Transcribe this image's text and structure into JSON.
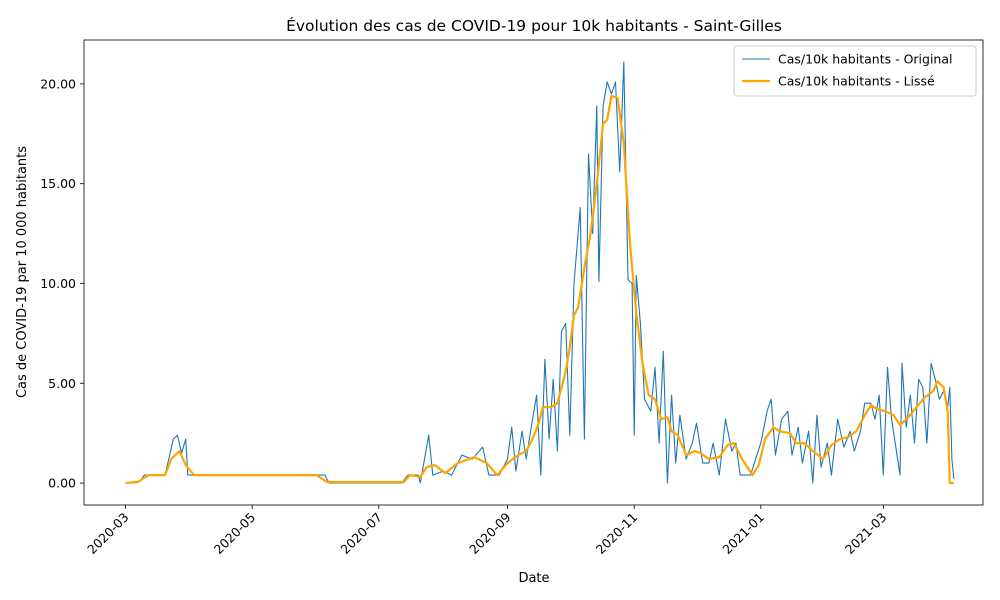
{
  "chart_data": {
    "type": "line",
    "title": "Évolution des cas de COVID-19 pour 10k habitants - Saint-Gilles",
    "xlabel": "Date",
    "ylabel": "Cas de COVID-19 par 10 000 habitants",
    "xlim": [
      "2020-02-10",
      "2021-04-18"
    ],
    "ylim": [
      -1.1,
      22.2
    ],
    "yticks": [
      0,
      5,
      10,
      15,
      20
    ],
    "ytick_labels": [
      "0.00",
      "5.00",
      "10.00",
      "15.00",
      "20.00"
    ],
    "xticks": [
      "2020-03-01",
      "2020-05-01",
      "2020-07-01",
      "2020-09-01",
      "2020-11-01",
      "2021-01-01",
      "2021-03-01"
    ],
    "xtick_labels": [
      "2020-03",
      "2020-05",
      "2020-07",
      "2020-09",
      "2020-11",
      "2021-01",
      "2021-03"
    ],
    "legend_position": "top-right",
    "grid": false,
    "series": [
      {
        "name": "Cas/10k habitants - Original",
        "color": "#1f77b4",
        "points": [
          [
            "2020-03-01",
            0
          ],
          [
            "2020-03-08",
            0.1
          ],
          [
            "2020-03-10",
            0.4
          ],
          [
            "2020-03-20",
            0.4
          ],
          [
            "2020-03-24",
            2.2
          ],
          [
            "2020-03-26",
            2.4
          ],
          [
            "2020-03-28",
            1.5
          ],
          [
            "2020-03-30",
            2.2
          ],
          [
            "2020-03-31",
            0.4
          ],
          [
            "2020-04-05",
            0.4
          ],
          [
            "2020-05-31",
            0.4
          ],
          [
            "2020-06-05",
            0.4
          ],
          [
            "2020-06-07",
            0
          ],
          [
            "2020-07-12",
            0
          ],
          [
            "2020-07-15",
            0.4
          ],
          [
            "2020-07-20",
            0.4
          ],
          [
            "2020-07-21",
            0
          ],
          [
            "2020-07-25",
            2.4
          ],
          [
            "2020-07-27",
            0.4
          ],
          [
            "2020-08-01",
            0.6
          ],
          [
            "2020-08-05",
            0.4
          ],
          [
            "2020-08-10",
            1.4
          ],
          [
            "2020-08-15",
            1.2
          ],
          [
            "2020-08-20",
            1.8
          ],
          [
            "2020-08-23",
            0.4
          ],
          [
            "2020-08-28",
            0.4
          ],
          [
            "2020-09-01",
            1.2
          ],
          [
            "2020-09-03",
            2.8
          ],
          [
            "2020-09-05",
            0.6
          ],
          [
            "2020-09-08",
            2.6
          ],
          [
            "2020-09-10",
            1.2
          ],
          [
            "2020-09-13",
            3.2
          ],
          [
            "2020-09-15",
            4.4
          ],
          [
            "2020-09-17",
            0.4
          ],
          [
            "2020-09-19",
            6.2
          ],
          [
            "2020-09-21",
            2.2
          ],
          [
            "2020-09-23",
            5.2
          ],
          [
            "2020-09-25",
            1.6
          ],
          [
            "2020-09-27",
            7.6
          ],
          [
            "2020-09-29",
            8.0
          ],
          [
            "2020-10-01",
            2.4
          ],
          [
            "2020-10-03",
            10.0
          ],
          [
            "2020-10-06",
            13.8
          ],
          [
            "2020-10-08",
            2.2
          ],
          [
            "2020-10-10",
            16.5
          ],
          [
            "2020-10-12",
            12.5
          ],
          [
            "2020-10-14",
            18.9
          ],
          [
            "2020-10-15",
            10.1
          ],
          [
            "2020-10-17",
            18.9
          ],
          [
            "2020-10-19",
            20.1
          ],
          [
            "2020-10-21",
            19.5
          ],
          [
            "2020-10-23",
            20.1
          ],
          [
            "2020-10-25",
            15.6
          ],
          [
            "2020-10-27",
            21.1
          ],
          [
            "2020-10-29",
            10.2
          ],
          [
            "2020-10-31",
            10.0
          ],
          [
            "2020-11-01",
            2.4
          ],
          [
            "2020-11-02",
            10.4
          ],
          [
            "2020-11-04",
            8.0
          ],
          [
            "2020-11-06",
            4.2
          ],
          [
            "2020-11-09",
            3.6
          ],
          [
            "2020-11-11",
            5.8
          ],
          [
            "2020-11-13",
            2.0
          ],
          [
            "2020-11-15",
            6.6
          ],
          [
            "2020-11-17",
            0.0
          ],
          [
            "2020-11-19",
            4.4
          ],
          [
            "2020-11-21",
            1.0
          ],
          [
            "2020-11-23",
            3.4
          ],
          [
            "2020-11-26",
            1.2
          ],
          [
            "2020-11-29",
            2.0
          ],
          [
            "2020-12-01",
            3.0
          ],
          [
            "2020-12-04",
            1.0
          ],
          [
            "2020-12-07",
            1.0
          ],
          [
            "2020-12-09",
            2.0
          ],
          [
            "2020-12-12",
            0.4
          ],
          [
            "2020-12-15",
            3.2
          ],
          [
            "2020-12-18",
            1.6
          ],
          [
            "2020-12-20",
            2.0
          ],
          [
            "2020-12-22",
            0.4
          ],
          [
            "2020-12-27",
            0.4
          ],
          [
            "2021-01-01",
            2.0
          ],
          [
            "2021-01-04",
            3.6
          ],
          [
            "2021-01-06",
            4.2
          ],
          [
            "2021-01-08",
            1.4
          ],
          [
            "2021-01-11",
            3.2
          ],
          [
            "2021-01-14",
            3.6
          ],
          [
            "2021-01-16",
            1.4
          ],
          [
            "2021-01-19",
            2.8
          ],
          [
            "2021-01-21",
            1.0
          ],
          [
            "2021-01-24",
            2.6
          ],
          [
            "2021-01-26",
            0.0
          ],
          [
            "2021-01-28",
            3.4
          ],
          [
            "2021-01-30",
            0.8
          ],
          [
            "2021-02-02",
            2.0
          ],
          [
            "2021-02-04",
            0.4
          ],
          [
            "2021-02-07",
            3.2
          ],
          [
            "2021-02-10",
            1.8
          ],
          [
            "2021-02-13",
            2.6
          ],
          [
            "2021-02-15",
            1.6
          ],
          [
            "2021-02-18",
            2.6
          ],
          [
            "2021-02-20",
            4.0
          ],
          [
            "2021-02-23",
            4.0
          ],
          [
            "2021-02-25",
            3.2
          ],
          [
            "2021-02-27",
            4.4
          ],
          [
            "2021-03-01",
            0.4
          ],
          [
            "2021-03-03",
            5.8
          ],
          [
            "2021-03-05",
            3.2
          ],
          [
            "2021-03-07",
            1.8
          ],
          [
            "2021-03-09",
            0.4
          ],
          [
            "2021-03-10",
            6.0
          ],
          [
            "2021-03-12",
            2.8
          ],
          [
            "2021-03-14",
            4.4
          ],
          [
            "2021-03-16",
            2.0
          ],
          [
            "2021-03-18",
            5.2
          ],
          [
            "2021-03-20",
            4.8
          ],
          [
            "2021-03-22",
            2.0
          ],
          [
            "2021-03-24",
            6.0
          ],
          [
            "2021-03-26",
            5.2
          ],
          [
            "2021-03-28",
            4.2
          ],
          [
            "2021-03-30",
            4.6
          ],
          [
            "2021-04-01",
            3.8
          ],
          [
            "2021-04-02",
            4.8
          ],
          [
            "2021-04-03",
            1.2
          ],
          [
            "2021-04-04",
            0.2
          ]
        ]
      },
      {
        "name": "Cas/10k habitants - Lissé",
        "color": "#ffa500",
        "points": [
          [
            "2020-03-01",
            0
          ],
          [
            "2020-03-07",
            0.05
          ],
          [
            "2020-03-12",
            0.4
          ],
          [
            "2020-03-20",
            0.4
          ],
          [
            "2020-03-23",
            1.2
          ],
          [
            "2020-03-27",
            1.6
          ],
          [
            "2020-03-30",
            0.9
          ],
          [
            "2020-04-03",
            0.4
          ],
          [
            "2020-06-01",
            0.4
          ],
          [
            "2020-06-06",
            0.05
          ],
          [
            "2020-07-13",
            0.05
          ],
          [
            "2020-07-16",
            0.4
          ],
          [
            "2020-07-21",
            0.3
          ],
          [
            "2020-07-24",
            0.8
          ],
          [
            "2020-07-28",
            0.9
          ],
          [
            "2020-08-02",
            0.5
          ],
          [
            "2020-08-08",
            1.0
          ],
          [
            "2020-08-16",
            1.3
          ],
          [
            "2020-08-22",
            1.0
          ],
          [
            "2020-08-27",
            0.4
          ],
          [
            "2020-09-01",
            1.0
          ],
          [
            "2020-09-06",
            1.4
          ],
          [
            "2020-09-10",
            1.6
          ],
          [
            "2020-09-13",
            2.2
          ],
          [
            "2020-09-16",
            3.0
          ],
          [
            "2020-09-18",
            3.8
          ],
          [
            "2020-09-22",
            3.8
          ],
          [
            "2020-09-25",
            4.0
          ],
          [
            "2020-09-29",
            5.6
          ],
          [
            "2020-10-01",
            6.8
          ],
          [
            "2020-10-03",
            8.4
          ],
          [
            "2020-10-05",
            8.8
          ],
          [
            "2020-10-08",
            10.8
          ],
          [
            "2020-10-11",
            12.5
          ],
          [
            "2020-10-14",
            15.0
          ],
          [
            "2020-10-17",
            18.0
          ],
          [
            "2020-10-19",
            18.2
          ],
          [
            "2020-10-21",
            19.4
          ],
          [
            "2020-10-24",
            19.3
          ],
          [
            "2020-10-27",
            17.0
          ],
          [
            "2020-10-30",
            12.0
          ],
          [
            "2020-11-02",
            8.5
          ],
          [
            "2020-11-05",
            6.0
          ],
          [
            "2020-11-08",
            4.4
          ],
          [
            "2020-11-11",
            4.2
          ],
          [
            "2020-11-14",
            3.2
          ],
          [
            "2020-11-17",
            3.3
          ],
          [
            "2020-11-19",
            2.6
          ],
          [
            "2020-11-22",
            2.4
          ],
          [
            "2020-11-26",
            1.4
          ],
          [
            "2020-11-30",
            1.6
          ],
          [
            "2020-12-03",
            1.5
          ],
          [
            "2020-12-07",
            1.2
          ],
          [
            "2020-12-12",
            1.3
          ],
          [
            "2020-12-16",
            1.9
          ],
          [
            "2020-12-19",
            2.0
          ],
          [
            "2020-12-23",
            1.2
          ],
          [
            "2020-12-28",
            0.4
          ],
          [
            "2020-12-31",
            0.9
          ],
          [
            "2021-01-03",
            2.2
          ],
          [
            "2021-01-07",
            2.8
          ],
          [
            "2021-01-10",
            2.6
          ],
          [
            "2021-01-15",
            2.5
          ],
          [
            "2021-01-18",
            2.0
          ],
          [
            "2021-01-22",
            2.0
          ],
          [
            "2021-01-26",
            1.6
          ],
          [
            "2021-01-31",
            1.2
          ],
          [
            "2021-02-04",
            1.9
          ],
          [
            "2021-02-08",
            2.2
          ],
          [
            "2021-02-12",
            2.3
          ],
          [
            "2021-02-16",
            2.6
          ],
          [
            "2021-02-20",
            3.4
          ],
          [
            "2021-02-23",
            3.9
          ],
          [
            "2021-02-26",
            3.7
          ],
          [
            "2021-03-02",
            3.6
          ],
          [
            "2021-03-06",
            3.4
          ],
          [
            "2021-03-09",
            2.9
          ],
          [
            "2021-03-13",
            3.3
          ],
          [
            "2021-03-17",
            3.8
          ],
          [
            "2021-03-21",
            4.3
          ],
          [
            "2021-03-25",
            4.6
          ],
          [
            "2021-03-27",
            5.1
          ],
          [
            "2021-03-30",
            4.8
          ],
          [
            "2021-04-01",
            3.6
          ],
          [
            "2021-04-02",
            0.0
          ],
          [
            "2021-04-04",
            0.0
          ]
        ]
      }
    ]
  }
}
